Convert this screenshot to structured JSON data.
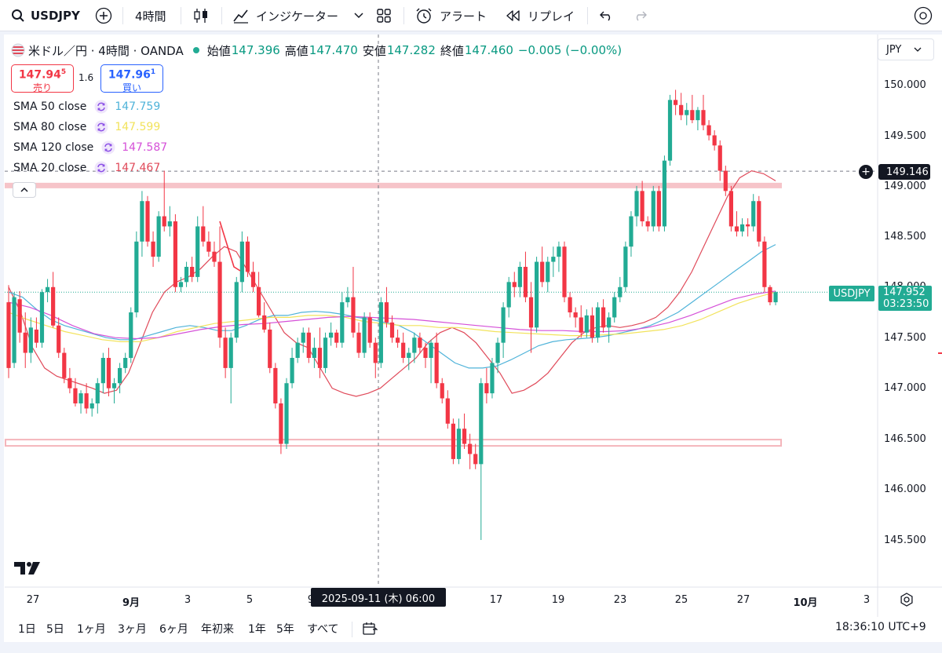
{
  "toolbar": {
    "symbol": "USDJPY",
    "interval": "4時間",
    "indicators_label": "インジケーター",
    "alert_label": "アラート",
    "replay_label": "リプレイ"
  },
  "legend": {
    "title": "米ドル／円 · 4時間 · OANDA",
    "open_label": "始値",
    "open": "147.396",
    "high_label": "高値",
    "high": "147.470",
    "low_label": "安値",
    "low": "147.282",
    "close_label": "終値",
    "close": "147.460",
    "change": "−0.005 (−0.00%)",
    "sell_price_main": "147.94",
    "sell_price_sup": "5",
    "sell_label": "売り",
    "spread": "1.6",
    "buy_price_main": "147.96",
    "buy_price_sup": "1",
    "buy_label": "買い"
  },
  "indicators": [
    {
      "label": "SMA 50 close",
      "value": "147.759",
      "color": "#4fb3d9"
    },
    {
      "label": "SMA 80 close",
      "value": "147.599",
      "color": "#f2e35c"
    },
    {
      "label": "SMA 120 close",
      "value": "147.587",
      "color": "#d550d8"
    },
    {
      "label": "SMA 20 close",
      "value": "147.467",
      "color": "#e04a5a"
    }
  ],
  "price_axis": {
    "currency": "JPY",
    "labels": [
      "150.000",
      "149.500",
      "149.000",
      "148.500",
      "148.000",
      "147.500",
      "147.000",
      "146.500",
      "146.000",
      "145.500"
    ],
    "crosshair_price": "149.146",
    "symbol_badge": "USDJPY",
    "last_price": "147.952",
    "countdown": "03:23:50"
  },
  "time_axis": {
    "labels": [
      "27",
      "9月",
      "3",
      "5",
      "9",
      "17",
      "19",
      "23",
      "25",
      "27",
      "10月",
      "3"
    ],
    "crosshair_time": "2025-09-11 (木)  06:00"
  },
  "bottom": {
    "ranges": [
      "1日",
      "5日",
      "1ヶ月",
      "3ヶ月",
      "6ヶ月",
      "年初来",
      "1年",
      "5年",
      "すべて"
    ],
    "clock": "18:36:10 UTC+9"
  },
  "chart_data": {
    "type": "candlestick",
    "title": "米ドル／円 · 4時間 · OANDA",
    "ylim": [
      145.2,
      150.3
    ],
    "horizontal_zones": [
      149.0,
      146.5
    ],
    "crosshair": {
      "time": "2025-09-11 06:00",
      "price": 149.146
    },
    "candles": [
      {
        "o": 147.85,
        "h": 148.02,
        "l": 147.1,
        "c": 147.2
      },
      {
        "o": 147.25,
        "h": 147.95,
        "l": 147.2,
        "c": 147.9
      },
      {
        "o": 147.88,
        "h": 147.96,
        "l": 147.45,
        "c": 147.55
      },
      {
        "o": 147.55,
        "h": 147.75,
        "l": 147.2,
        "c": 147.35
      },
      {
        "o": 147.35,
        "h": 147.7,
        "l": 147.25,
        "c": 147.6
      },
      {
        "o": 147.58,
        "h": 147.7,
        "l": 147.4,
        "c": 147.45
      },
      {
        "o": 147.45,
        "h": 147.98,
        "l": 147.4,
        "c": 147.95
      },
      {
        "o": 147.95,
        "h": 148.08,
        "l": 147.85,
        "c": 148.0
      },
      {
        "o": 148.0,
        "h": 148.15,
        "l": 147.6,
        "c": 147.62
      },
      {
        "o": 147.62,
        "h": 147.7,
        "l": 147.3,
        "c": 147.35
      },
      {
        "o": 147.35,
        "h": 147.4,
        "l": 147.05,
        "c": 147.1
      },
      {
        "o": 147.1,
        "h": 147.2,
        "l": 146.95,
        "c": 147.0
      },
      {
        "o": 147.0,
        "h": 147.1,
        "l": 146.82,
        "c": 146.85
      },
      {
        "o": 146.85,
        "h": 146.98,
        "l": 146.75,
        "c": 146.95
      },
      {
        "o": 146.95,
        "h": 147.05,
        "l": 146.75,
        "c": 146.8
      },
      {
        "o": 146.8,
        "h": 146.9,
        "l": 146.72,
        "c": 146.85
      },
      {
        "o": 146.85,
        "h": 147.1,
        "l": 146.75,
        "c": 147.05
      },
      {
        "o": 147.05,
        "h": 147.35,
        "l": 146.95,
        "c": 147.3
      },
      {
        "o": 147.3,
        "h": 147.4,
        "l": 146.92,
        "c": 147.0
      },
      {
        "o": 147.0,
        "h": 147.1,
        "l": 146.85,
        "c": 147.05
      },
      {
        "o": 147.05,
        "h": 147.25,
        "l": 146.95,
        "c": 147.2
      },
      {
        "o": 147.2,
        "h": 147.35,
        "l": 147.15,
        "c": 147.3
      },
      {
        "o": 147.3,
        "h": 147.8,
        "l": 147.25,
        "c": 147.75
      },
      {
        "o": 147.75,
        "h": 148.55,
        "l": 147.7,
        "c": 148.45
      },
      {
        "o": 148.45,
        "h": 148.95,
        "l": 148.3,
        "c": 148.85
      },
      {
        "o": 148.85,
        "h": 148.9,
        "l": 148.4,
        "c": 148.45
      },
      {
        "o": 148.45,
        "h": 148.55,
        "l": 148.2,
        "c": 148.3
      },
      {
        "o": 148.3,
        "h": 148.75,
        "l": 148.25,
        "c": 148.7
      },
      {
        "o": 148.7,
        "h": 149.15,
        "l": 148.55,
        "c": 148.6
      },
      {
        "o": 148.6,
        "h": 148.8,
        "l": 148.5,
        "c": 148.65
      },
      {
        "o": 148.65,
        "h": 148.72,
        "l": 147.95,
        "c": 148.0
      },
      {
        "o": 148.0,
        "h": 148.1,
        "l": 147.95,
        "c": 148.05
      },
      {
        "o": 148.05,
        "h": 148.25,
        "l": 148.0,
        "c": 148.2
      },
      {
        "o": 148.2,
        "h": 148.3,
        "l": 148.05,
        "c": 148.1
      },
      {
        "o": 148.1,
        "h": 148.7,
        "l": 148.05,
        "c": 148.6
      },
      {
        "o": 148.6,
        "h": 148.8,
        "l": 148.4,
        "c": 148.45
      },
      {
        "o": 148.45,
        "h": 148.55,
        "l": 148.3,
        "c": 148.35
      },
      {
        "o": 148.35,
        "h": 148.45,
        "l": 148.2,
        "c": 148.25
      },
      {
        "o": 148.25,
        "h": 148.6,
        "l": 147.4,
        "c": 147.5
      },
      {
        "o": 147.5,
        "h": 147.6,
        "l": 147.1,
        "c": 147.2
      },
      {
        "o": 147.2,
        "h": 147.55,
        "l": 146.85,
        "c": 147.5
      },
      {
        "o": 147.5,
        "h": 148.1,
        "l": 147.45,
        "c": 148.05
      },
      {
        "o": 148.05,
        "h": 148.55,
        "l": 147.95,
        "c": 148.45
      },
      {
        "o": 148.45,
        "h": 148.5,
        "l": 148.1,
        "c": 148.15
      },
      {
        "o": 148.15,
        "h": 148.25,
        "l": 147.95,
        "c": 148.0
      },
      {
        "o": 148.0,
        "h": 148.15,
        "l": 147.7,
        "c": 147.72
      },
      {
        "o": 147.72,
        "h": 147.85,
        "l": 147.55,
        "c": 147.58
      },
      {
        "o": 147.58,
        "h": 147.65,
        "l": 147.15,
        "c": 147.2
      },
      {
        "o": 147.2,
        "h": 147.25,
        "l": 146.8,
        "c": 146.85
      },
      {
        "o": 146.85,
        "h": 146.9,
        "l": 146.35,
        "c": 146.45
      },
      {
        "o": 146.45,
        "h": 147.1,
        "l": 146.4,
        "c": 147.05
      },
      {
        "o": 147.05,
        "h": 147.4,
        "l": 147.0,
        "c": 147.3
      },
      {
        "o": 147.3,
        "h": 147.5,
        "l": 147.25,
        "c": 147.45
      },
      {
        "o": 147.45,
        "h": 147.6,
        "l": 147.35,
        "c": 147.55
      },
      {
        "o": 147.55,
        "h": 147.6,
        "l": 147.25,
        "c": 147.3
      },
      {
        "o": 147.3,
        "h": 147.5,
        "l": 147.2,
        "c": 147.4
      },
      {
        "o": 147.4,
        "h": 147.6,
        "l": 147.1,
        "c": 147.2
      },
      {
        "o": 147.2,
        "h": 147.55,
        "l": 147.15,
        "c": 147.5
      },
      {
        "o": 147.5,
        "h": 147.65,
        "l": 147.42,
        "c": 147.55
      },
      {
        "o": 147.55,
        "h": 147.58,
        "l": 147.4,
        "c": 147.45
      },
      {
        "o": 147.45,
        "h": 147.95,
        "l": 147.4,
        "c": 147.85
      },
      {
        "o": 147.85,
        "h": 148.0,
        "l": 147.8,
        "c": 147.9
      },
      {
        "o": 147.9,
        "h": 148.2,
        "l": 147.5,
        "c": 147.55
      },
      {
        "o": 147.55,
        "h": 147.65,
        "l": 147.3,
        "c": 147.35
      },
      {
        "o": 147.35,
        "h": 147.75,
        "l": 147.3,
        "c": 147.7
      },
      {
        "o": 147.7,
        "h": 147.75,
        "l": 147.4,
        "c": 147.45
      },
      {
        "o": 147.45,
        "h": 147.5,
        "l": 147.1,
        "c": 147.25
      },
      {
        "o": 147.25,
        "h": 147.9,
        "l": 147.2,
        "c": 147.85
      },
      {
        "o": 147.85,
        "h": 148.0,
        "l": 147.6,
        "c": 147.65
      },
      {
        "o": 147.65,
        "h": 147.72,
        "l": 147.45,
        "c": 147.5
      },
      {
        "o": 147.5,
        "h": 147.58,
        "l": 147.4,
        "c": 147.45
      },
      {
        "o": 147.45,
        "h": 147.55,
        "l": 147.25,
        "c": 147.3
      },
      {
        "o": 147.3,
        "h": 147.4,
        "l": 147.18,
        "c": 147.35
      },
      {
        "o": 147.35,
        "h": 147.55,
        "l": 147.25,
        "c": 147.5
      },
      {
        "o": 147.5,
        "h": 147.55,
        "l": 147.35,
        "c": 147.4
      },
      {
        "o": 147.4,
        "h": 147.45,
        "l": 147.2,
        "c": 147.3
      },
      {
        "o": 147.3,
        "h": 147.48,
        "l": 147.05,
        "c": 147.45
      },
      {
        "o": 147.45,
        "h": 147.55,
        "l": 147.0,
        "c": 147.05
      },
      {
        "o": 147.05,
        "h": 147.1,
        "l": 146.85,
        "c": 146.9
      },
      {
        "o": 146.9,
        "h": 146.98,
        "l": 146.6,
        "c": 146.65
      },
      {
        "o": 146.65,
        "h": 146.7,
        "l": 146.25,
        "c": 146.3
      },
      {
        "o": 146.3,
        "h": 146.7,
        "l": 146.25,
        "c": 146.6
      },
      {
        "o": 146.6,
        "h": 146.75,
        "l": 146.4,
        "c": 146.45
      },
      {
        "o": 146.45,
        "h": 146.55,
        "l": 146.2,
        "c": 146.35
      },
      {
        "o": 146.35,
        "h": 146.45,
        "l": 146.2,
        "c": 146.25
      },
      {
        "o": 146.25,
        "h": 147.1,
        "l": 145.5,
        "c": 147.05
      },
      {
        "o": 147.05,
        "h": 147.2,
        "l": 146.85,
        "c": 146.95
      },
      {
        "o": 146.95,
        "h": 147.3,
        "l": 146.9,
        "c": 147.25
      },
      {
        "o": 147.25,
        "h": 147.5,
        "l": 147.15,
        "c": 147.45
      },
      {
        "o": 147.45,
        "h": 147.85,
        "l": 147.3,
        "c": 147.8
      },
      {
        "o": 147.8,
        "h": 148.1,
        "l": 147.7,
        "c": 148.05
      },
      {
        "o": 148.05,
        "h": 148.15,
        "l": 147.9,
        "c": 148.0
      },
      {
        "o": 148.0,
        "h": 148.25,
        "l": 147.9,
        "c": 148.2
      },
      {
        "o": 148.2,
        "h": 148.35,
        "l": 147.85,
        "c": 147.9
      },
      {
        "o": 147.9,
        "h": 148.05,
        "l": 147.35,
        "c": 147.6
      },
      {
        "o": 147.6,
        "h": 148.3,
        "l": 147.55,
        "c": 148.25
      },
      {
        "o": 148.25,
        "h": 148.4,
        "l": 148.0,
        "c": 148.05
      },
      {
        "o": 148.05,
        "h": 148.3,
        "l": 147.95,
        "c": 148.25
      },
      {
        "o": 148.25,
        "h": 148.4,
        "l": 148.1,
        "c": 148.3
      },
      {
        "o": 148.3,
        "h": 148.45,
        "l": 148.15,
        "c": 148.4
      },
      {
        "o": 148.4,
        "h": 148.45,
        "l": 147.85,
        "c": 147.9
      },
      {
        "o": 147.9,
        "h": 147.95,
        "l": 147.7,
        "c": 147.75
      },
      {
        "o": 147.75,
        "h": 147.8,
        "l": 147.6,
        "c": 147.7
      },
      {
        "o": 147.7,
        "h": 147.82,
        "l": 147.5,
        "c": 147.55
      },
      {
        "o": 147.55,
        "h": 147.78,
        "l": 147.5,
        "c": 147.72
      },
      {
        "o": 147.72,
        "h": 147.8,
        "l": 147.45,
        "c": 147.5
      },
      {
        "o": 147.5,
        "h": 147.85,
        "l": 147.45,
        "c": 147.8
      },
      {
        "o": 147.8,
        "h": 147.88,
        "l": 147.55,
        "c": 147.6
      },
      {
        "o": 147.6,
        "h": 147.75,
        "l": 147.45,
        "c": 147.7
      },
      {
        "o": 147.7,
        "h": 147.95,
        "l": 147.65,
        "c": 147.9
      },
      {
        "o": 147.9,
        "h": 148.1,
        "l": 147.85,
        "c": 148.0
      },
      {
        "o": 148.0,
        "h": 148.45,
        "l": 147.95,
        "c": 148.4
      },
      {
        "o": 148.4,
        "h": 148.75,
        "l": 148.3,
        "c": 148.7
      },
      {
        "o": 148.7,
        "h": 149.0,
        "l": 148.6,
        "c": 148.95
      },
      {
        "o": 148.95,
        "h": 149.05,
        "l": 148.6,
        "c": 148.65
      },
      {
        "o": 148.65,
        "h": 148.7,
        "l": 148.55,
        "c": 148.6
      },
      {
        "o": 148.6,
        "h": 149.0,
        "l": 148.55,
        "c": 148.95
      },
      {
        "o": 148.95,
        "h": 149.0,
        "l": 148.55,
        "c": 148.6
      },
      {
        "o": 148.6,
        "h": 149.3,
        "l": 148.55,
        "c": 149.25
      },
      {
        "o": 149.25,
        "h": 149.9,
        "l": 149.2,
        "c": 149.85
      },
      {
        "o": 149.85,
        "h": 149.95,
        "l": 149.7,
        "c": 149.8
      },
      {
        "o": 149.8,
        "h": 149.92,
        "l": 149.65,
        "c": 149.7
      },
      {
        "o": 149.7,
        "h": 149.82,
        "l": 149.6,
        "c": 149.75
      },
      {
        "o": 149.75,
        "h": 149.9,
        "l": 149.62,
        "c": 149.65
      },
      {
        "o": 149.65,
        "h": 149.78,
        "l": 149.55,
        "c": 149.75
      },
      {
        "o": 149.75,
        "h": 149.9,
        "l": 149.55,
        "c": 149.6
      },
      {
        "o": 149.6,
        "h": 149.65,
        "l": 149.45,
        "c": 149.5
      },
      {
        "o": 149.5,
        "h": 149.55,
        "l": 149.35,
        "c": 149.4
      },
      {
        "o": 149.4,
        "h": 149.45,
        "l": 149.05,
        "c": 149.15
      },
      {
        "o": 149.15,
        "h": 149.2,
        "l": 148.9,
        "c": 148.95
      },
      {
        "o": 148.95,
        "h": 149.0,
        "l": 148.55,
        "c": 148.6
      },
      {
        "o": 148.6,
        "h": 148.75,
        "l": 148.5,
        "c": 148.55
      },
      {
        "o": 148.55,
        "h": 148.68,
        "l": 148.5,
        "c": 148.62
      },
      {
        "o": 148.62,
        "h": 148.68,
        "l": 148.5,
        "c": 148.6
      },
      {
        "o": 148.6,
        "h": 148.92,
        "l": 148.55,
        "c": 148.85
      },
      {
        "o": 148.85,
        "h": 148.9,
        "l": 148.4,
        "c": 148.45
      },
      {
        "o": 148.45,
        "h": 148.5,
        "l": 147.95,
        "c": 148.0
      },
      {
        "o": 148.0,
        "h": 148.02,
        "l": 147.82,
        "c": 147.85
      },
      {
        "o": 147.85,
        "h": 147.96,
        "l": 147.82,
        "c": 147.95
      }
    ],
    "sma": [
      {
        "name": "SMA 20",
        "color": "#e04a5a",
        "values": [
          148.0,
          147.75,
          147.4,
          147.2,
          147.12,
          147.08,
          147.04,
          147.0,
          146.95,
          146.98,
          147.15,
          147.45,
          147.75,
          147.95,
          148.05,
          148.1,
          148.18,
          148.3,
          148.4,
          148.35,
          148.15,
          147.95,
          147.75,
          147.55,
          147.45,
          147.4,
          147.2,
          147.0,
          146.95,
          146.92,
          146.95,
          147.0,
          147.1,
          147.2,
          147.3,
          147.45,
          147.55,
          147.6,
          147.55,
          147.45,
          147.3,
          147.15,
          146.95,
          146.98,
          147.05,
          147.15,
          147.3,
          147.45,
          147.55,
          147.6,
          147.62,
          147.6,
          147.62,
          147.65,
          147.7,
          147.8,
          147.95,
          148.15,
          148.4,
          148.65,
          148.9,
          149.08,
          149.15,
          149.12,
          149.05
        ]
      },
      {
        "name": "SMA 50",
        "color": "#4fb3d9",
        "values": [
          147.95,
          147.9,
          147.78,
          147.68,
          147.62,
          147.58,
          147.54,
          147.5,
          147.48,
          147.48,
          147.52,
          147.56,
          147.6,
          147.62,
          147.6,
          147.57,
          147.57,
          147.62,
          147.68,
          147.72,
          147.72,
          147.75,
          147.76,
          147.75,
          147.73,
          147.7,
          147.68,
          147.65,
          147.62,
          147.55,
          147.45,
          147.35,
          147.25,
          147.2,
          147.2,
          147.22,
          147.28,
          147.35,
          147.42,
          147.46,
          147.48,
          147.49,
          147.5,
          147.52,
          147.55,
          147.58,
          147.62,
          147.68,
          147.75,
          147.85,
          147.95,
          148.05,
          148.15,
          148.25,
          148.35,
          148.42
        ]
      },
      {
        "name": "SMA 80",
        "color": "#f2e35c",
        "values": [
          147.75,
          147.68,
          147.62,
          147.56,
          147.52,
          147.48,
          147.46,
          147.46,
          147.5,
          147.56,
          147.6,
          147.64,
          147.66,
          147.68,
          147.7,
          147.7,
          147.72,
          147.72,
          147.7,
          147.66,
          147.64,
          147.62,
          147.62,
          147.6,
          147.6,
          147.58,
          147.56,
          147.55,
          147.54,
          147.53,
          147.52,
          147.52,
          147.53,
          147.54,
          147.56,
          147.58,
          147.62,
          147.68,
          147.76,
          147.84,
          147.9,
          147.95
        ]
      },
      {
        "name": "SMA 120",
        "color": "#d550d8",
        "values": [
          147.85,
          147.8,
          147.72,
          147.62,
          147.54,
          147.5,
          147.49,
          147.5,
          147.54,
          147.58,
          147.61,
          147.63,
          147.64,
          147.66,
          147.68,
          147.7,
          147.71,
          147.7,
          147.69,
          147.68,
          147.66,
          147.64,
          147.62,
          147.6,
          147.58,
          147.57,
          147.57,
          147.56,
          147.56,
          147.57,
          147.6,
          147.65,
          147.72,
          147.8,
          147.88,
          147.93,
          147.96
        ]
      }
    ]
  }
}
